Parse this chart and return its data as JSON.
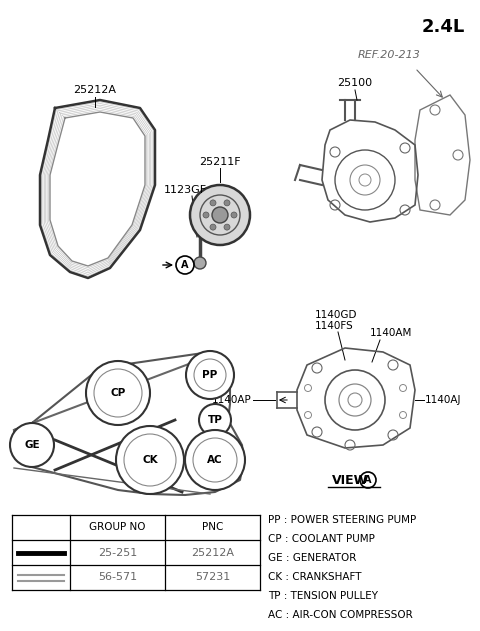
{
  "title": "2.4L",
  "bg_color": "#ffffff",
  "legend": [
    "PP : POWER STEERING PUMP",
    "CP : COOLANT PUMP",
    "GE : GENERATOR",
    "CK : CRANKSHAFT",
    "TP : TENSION PULLEY",
    "AC : AIR-CON COMPRESSOR"
  ],
  "table_headers": [
    "",
    "GROUP NO",
    "PNC"
  ],
  "table_row1": [
    "25-251",
    "25212A"
  ],
  "table_row2": [
    "56-571",
    "57231"
  ],
  "diagram_title": "2.4L"
}
